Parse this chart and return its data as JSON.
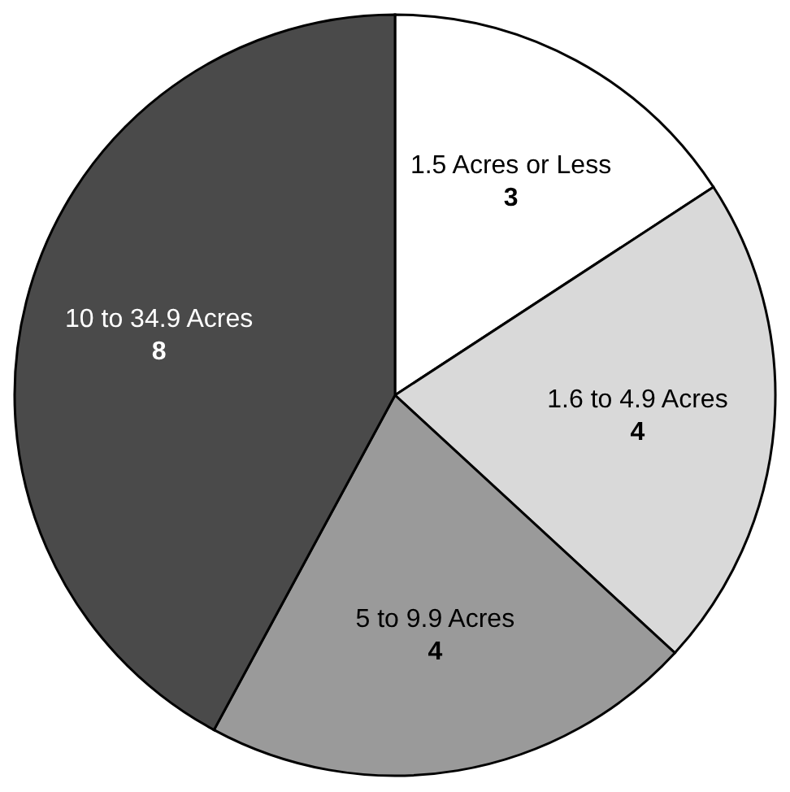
{
  "chart_data": {
    "type": "pie",
    "categories": [
      "1.5 Acres or Less",
      "1.6 to 4.9 Acres",
      "5 to 9.9 Acres",
      "10 to 34.9 Acres"
    ],
    "values": [
      3,
      4,
      4,
      8
    ],
    "colors": [
      "#ffffff",
      "#d9d9d9",
      "#9a9a9a",
      "#4a4a4a"
    ],
    "data_labels": true
  }
}
